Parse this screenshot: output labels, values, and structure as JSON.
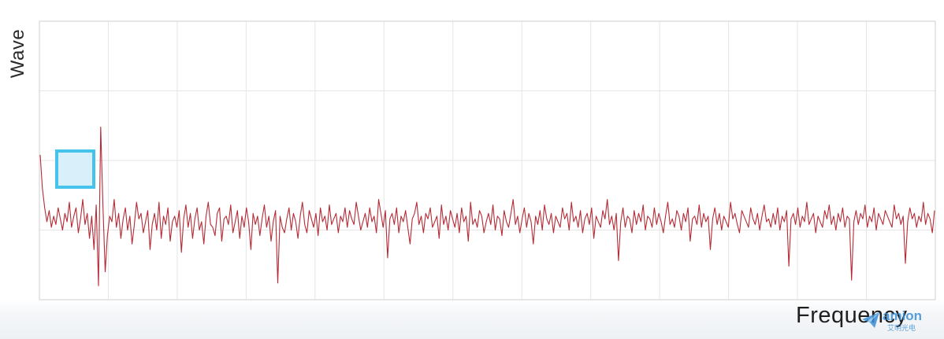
{
  "chart_data": {
    "type": "line",
    "title": "",
    "xlabel": "Frequency",
    "ylabel": "Wave",
    "grid": true,
    "x_range": [
      0,
      1130
    ],
    "ylim": [
      0,
      100
    ],
    "series": [
      {
        "values": [
          52,
          40,
          33,
          28,
          32,
          26,
          30,
          27,
          33,
          29,
          25,
          31,
          28,
          35,
          26,
          30,
          33,
          24,
          29,
          36,
          27,
          31,
          22,
          30,
          18,
          34,
          5,
          62,
          34,
          10,
          23,
          30,
          28,
          36,
          26,
          31,
          22,
          29,
          33,
          25,
          30,
          20,
          27,
          35,
          29,
          31,
          24,
          28,
          32,
          18,
          27,
          31,
          25,
          35,
          22,
          30,
          27,
          33,
          21,
          28,
          30,
          26,
          32,
          17,
          29,
          34,
          26,
          31,
          22,
          29,
          33,
          25,
          28,
          20,
          30,
          35,
          27,
          26,
          23,
          31,
          33,
          21,
          29,
          30,
          27,
          34,
          24,
          28,
          32,
          22,
          30,
          26,
          33,
          28,
          18,
          31,
          27,
          30,
          23,
          29,
          34,
          26,
          30,
          21,
          28,
          32,
          6,
          30,
          26,
          24,
          29,
          33,
          25,
          31,
          28,
          22,
          30,
          35,
          27,
          24,
          32,
          29,
          26,
          31,
          23,
          33,
          28,
          30,
          25,
          34,
          27,
          29,
          31,
          24,
          30,
          28,
          33,
          26,
          32,
          29,
          27,
          35,
          30,
          25,
          28,
          31,
          26,
          33,
          28,
          30,
          24,
          36,
          31,
          26,
          32,
          15,
          29,
          31,
          27,
          33,
          24,
          30,
          28,
          32,
          26,
          20,
          29,
          31,
          35,
          27,
          30,
          24,
          31,
          29,
          33,
          26,
          28,
          30,
          22,
          34,
          27,
          30,
          25,
          32,
          29,
          26,
          31,
          24,
          33,
          28,
          30,
          21,
          35,
          27,
          29,
          26,
          32,
          30,
          24,
          28,
          31,
          27,
          34,
          25,
          30,
          29,
          23,
          32,
          28,
          26,
          31,
          36,
          27,
          30,
          24,
          29,
          33,
          26,
          31,
          28,
          20,
          30,
          27,
          32,
          25,
          34,
          29,
          27,
          31,
          24,
          30,
          28,
          26,
          33,
          29,
          31,
          25,
          35,
          28,
          30,
          26,
          32,
          24,
          29,
          31,
          27,
          33,
          22,
          30,
          28,
          26,
          32,
          29,
          36,
          27,
          30,
          25,
          31,
          14,
          28,
          33,
          26,
          30,
          29,
          24,
          32,
          27,
          31,
          28,
          34,
          25,
          30,
          29,
          26,
          33,
          27,
          31,
          28,
          24,
          30,
          35,
          27,
          29,
          26,
          32,
          30,
          25,
          31,
          28,
          33,
          21,
          29,
          30,
          27,
          34,
          26,
          31,
          28,
          30,
          18,
          29,
          33,
          27,
          31,
          25,
          30,
          28,
          26,
          35,
          29,
          31,
          27,
          24,
          32,
          30,
          28,
          26,
          33,
          29,
          27,
          31,
          25,
          30,
          34,
          28,
          29,
          26,
          31,
          27,
          33,
          25,
          30,
          28,
          32,
          12,
          29,
          31,
          27,
          33,
          26,
          30,
          28,
          35,
          27,
          29,
          31,
          24,
          30,
          28,
          26,
          32,
          29,
          34,
          27,
          30,
          25,
          31,
          28,
          33,
          26,
          30,
          29,
          7,
          28,
          32,
          27,
          31,
          29,
          34,
          26,
          30,
          28,
          33,
          25,
          31,
          29,
          27,
          32,
          30,
          28,
          26,
          34,
          29,
          31,
          27,
          30,
          13,
          28,
          33,
          29,
          31,
          26,
          30,
          28,
          35,
          27,
          31,
          29,
          24,
          32
        ]
      }
    ]
  },
  "highlight_box": {
    "fill": "#d9f0fa",
    "stroke": "#45c3ea"
  },
  "colors": {
    "line": "#b52a35",
    "grid": "#e6e6e6",
    "axis": "#cfcfcf"
  },
  "brand": {
    "word": "amion",
    "subtitle": "艾明光电",
    "icon": "paper-plane-logo-icon"
  }
}
